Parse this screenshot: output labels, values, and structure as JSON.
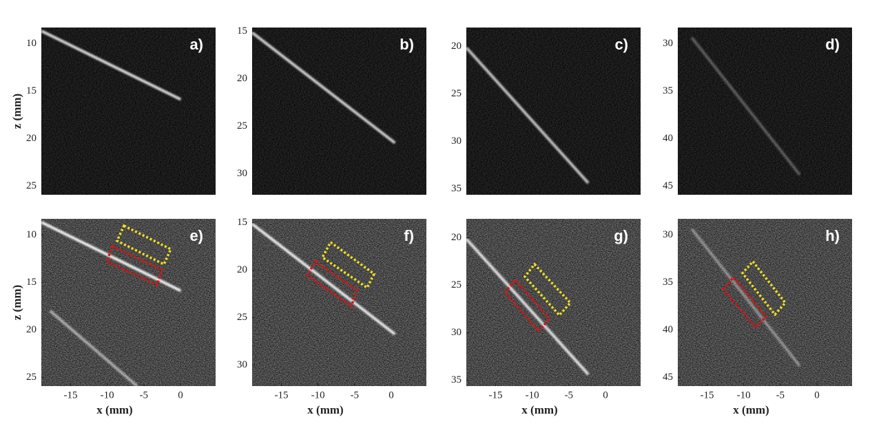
{
  "chart_data": [
    {
      "type": "image",
      "label": "a)",
      "ylabel": "z (mm)",
      "xlim": [
        -19,
        4.8
      ],
      "ylim": [
        8.3,
        25.9
      ],
      "y_inverted": true,
      "yticks": [
        10,
        15,
        20,
        25
      ]
    },
    {
      "type": "image",
      "label": "b)",
      "xlim": [
        -19,
        4.8
      ],
      "ylim": [
        14.6,
        32.2
      ],
      "y_inverted": true,
      "yticks": [
        15,
        20,
        25,
        30
      ]
    },
    {
      "type": "image",
      "label": "c)",
      "xlim": [
        -19,
        4.8
      ],
      "ylim": [
        18,
        35.6
      ],
      "y_inverted": true,
      "yticks": [
        20,
        25,
        30,
        35
      ]
    },
    {
      "type": "image",
      "label": "d)",
      "xlim": [
        -19,
        4.8
      ],
      "ylim": [
        28.3,
        45.9
      ],
      "y_inverted": true,
      "yticks": [
        30,
        35,
        40,
        45
      ]
    },
    {
      "type": "image",
      "label": "e)",
      "xlabel": "x (mm)",
      "ylabel": "z (mm)",
      "xlim": [
        -19,
        4.8
      ],
      "ylim": [
        8.3,
        25.9
      ],
      "y_inverted": true,
      "xticks": [
        -15,
        -10,
        -5,
        0
      ],
      "yticks": [
        10,
        15,
        20,
        25
      ]
    },
    {
      "type": "image",
      "label": "f)",
      "xlabel": "x (mm)",
      "xlim": [
        -19,
        4.8
      ],
      "ylim": [
        14.6,
        32.2
      ],
      "y_inverted": true,
      "xticks": [
        -15,
        -10,
        -5,
        0
      ],
      "yticks": [
        15,
        20,
        25,
        30
      ]
    },
    {
      "type": "image",
      "label": "g)",
      "xlabel": "x (mm)",
      "xlim": [
        -19,
        4.8
      ],
      "ylim": [
        18,
        35.6
      ],
      "y_inverted": true,
      "xticks": [
        -15,
        -10,
        -5,
        0
      ],
      "yticks": [
        20,
        25,
        30,
        35
      ]
    },
    {
      "type": "image",
      "label": "h)",
      "xlabel": "x (mm)",
      "xlim": [
        -19,
        4.8
      ],
      "ylim": [
        28.3,
        45.9
      ],
      "y_inverted": true,
      "xticks": [
        -15,
        -10,
        -5,
        0
      ],
      "yticks": [
        30,
        35,
        40,
        45
      ]
    }
  ]
}
